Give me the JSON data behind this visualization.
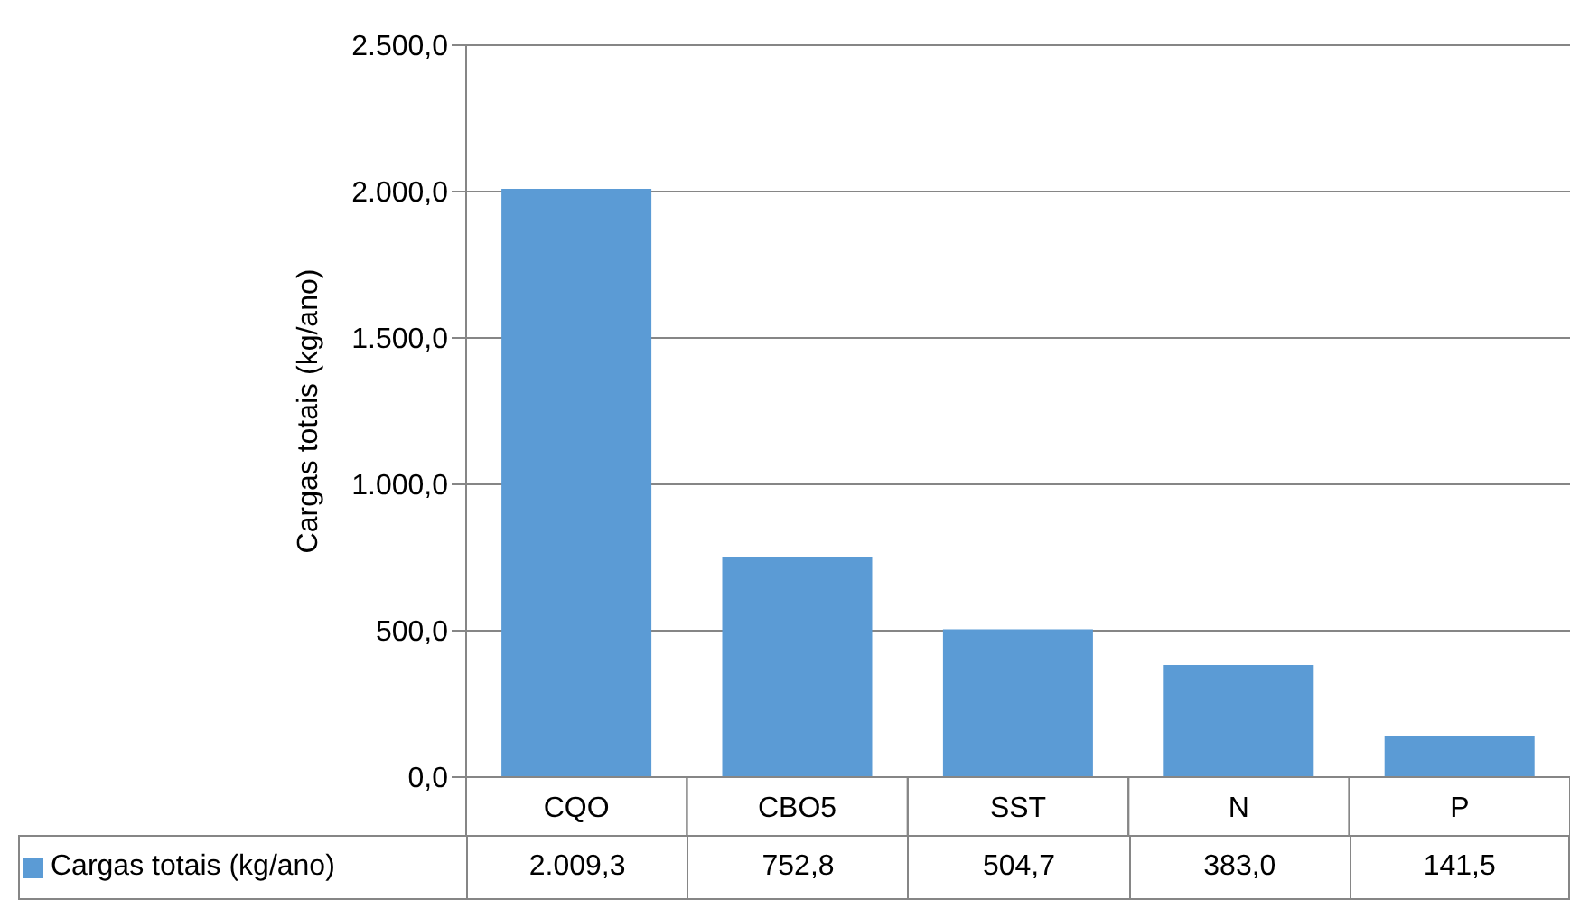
{
  "chart_data": {
    "type": "bar",
    "ylabel": "Cargas totais (kg/ano)",
    "categories": [
      "CQO",
      "CBO5",
      "SST",
      "N",
      "P"
    ],
    "series": [
      {
        "name": "Cargas totais (kg/ano)",
        "color": "#5b9bd5",
        "values": [
          2009.3,
          752.8,
          504.7,
          383.0,
          141.5
        ],
        "value_labels": [
          "2.009,3",
          "752,8",
          "504,7",
          "383,0",
          "141,5"
        ]
      }
    ],
    "ylim": [
      0,
      2500
    ],
    "yticks": [
      {
        "value": 0,
        "label": "0,0"
      },
      {
        "value": 500,
        "label": "500,0"
      },
      {
        "value": 1000,
        "label": "1.000,0"
      },
      {
        "value": 1500,
        "label": "1.500,0"
      },
      {
        "value": 2000,
        "label": "2.000,0"
      },
      {
        "value": 2500,
        "label": "2.500,0"
      }
    ],
    "grid": "y",
    "legend": "bottom"
  }
}
